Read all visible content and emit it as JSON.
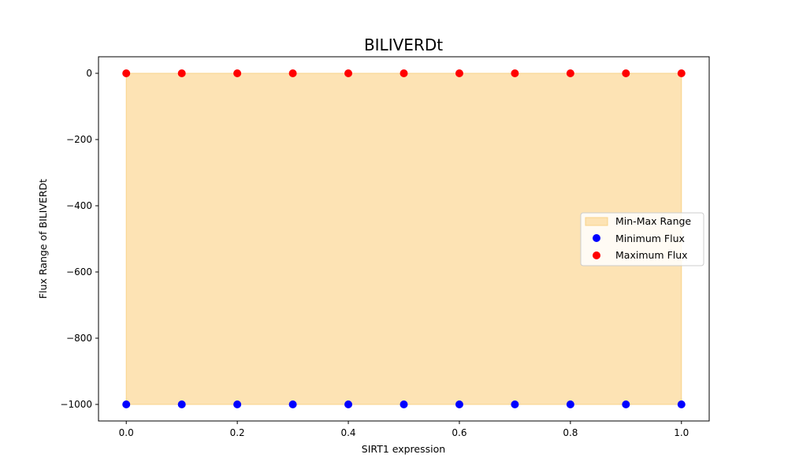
{
  "chart_data": {
    "type": "scatter",
    "title": "BILIVERDt",
    "xlabel": "SIRT1 expression",
    "ylabel": "Flux Range of BILIVERDt",
    "xlim": [
      -0.05,
      1.05
    ],
    "ylim": [
      -1050,
      50
    ],
    "xticks": [
      0.0,
      0.2,
      0.4,
      0.6,
      0.8,
      1.0
    ],
    "xtick_labels": [
      "0.0",
      "0.2",
      "0.4",
      "0.6",
      "0.8",
      "1.0"
    ],
    "yticks": [
      0,
      -200,
      -400,
      -600,
      -800,
      -1000
    ],
    "ytick_labels": [
      "0",
      "−200",
      "−400",
      "−600",
      "−800",
      "−1000"
    ],
    "grid": false,
    "legend_position": "center-right",
    "x": [
      0.0,
      0.1,
      0.2,
      0.3,
      0.4,
      0.5,
      0.6,
      0.7,
      0.8,
      0.9,
      1.0
    ],
    "fill": {
      "name": "Min-Max Range",
      "color": "#fde3b4",
      "edge_color": "#f8d38a"
    },
    "series": [
      {
        "name": "Minimum Flux",
        "color": "#0000ff",
        "values": [
          -1000,
          -1000,
          -1000,
          -1000,
          -1000,
          -1000,
          -1000,
          -1000,
          -1000,
          -1000,
          -1000
        ]
      },
      {
        "name": "Maximum Flux",
        "color": "#ff0000",
        "values": [
          0,
          0,
          0,
          0,
          0,
          0,
          0,
          0,
          0,
          0,
          0
        ]
      }
    ]
  }
}
